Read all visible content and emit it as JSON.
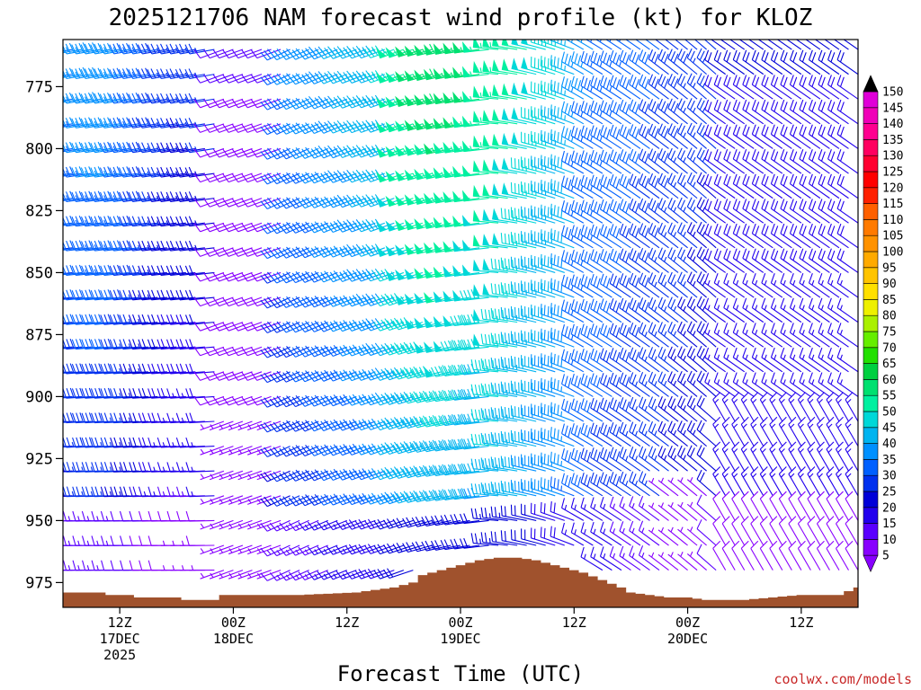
{
  "chart_data": {
    "type": "wind-profile",
    "title": "2025121706 NAM forecast wind profile (kt) for KLOZ",
    "xlabel": "Forecast Time (UTC)",
    "credit": "coolwx.com/models",
    "y_axis": {
      "unit": "hPa",
      "ticks": [
        775,
        800,
        825,
        850,
        875,
        900,
        925,
        950,
        975
      ],
      "range": [
        756,
        985
      ]
    },
    "x_axis": {
      "unit": "forecast hour",
      "range": [
        0,
        84
      ],
      "ticks": [
        {
          "hour": 6,
          "lines": [
            "12Z",
            "17DEC",
            "2025"
          ]
        },
        {
          "hour": 18,
          "lines": [
            "00Z",
            "18DEC"
          ]
        },
        {
          "hour": 30,
          "lines": [
            "12Z"
          ]
        },
        {
          "hour": 42,
          "lines": [
            "00Z",
            "19DEC"
          ]
        },
        {
          "hour": 54,
          "lines": [
            "12Z"
          ]
        },
        {
          "hour": 66,
          "lines": [
            "00Z",
            "20DEC"
          ]
        },
        {
          "hour": 78,
          "lines": [
            "12Z"
          ]
        }
      ]
    },
    "colorbar": {
      "levels": [
        5,
        10,
        15,
        20,
        25,
        30,
        35,
        40,
        45,
        50,
        55,
        60,
        65,
        70,
        75,
        80,
        85,
        90,
        95,
        100,
        105,
        110,
        115,
        120,
        125,
        130,
        135,
        140,
        145,
        150
      ],
      "colors": [
        "#8800ff",
        "#5a00ff",
        "#2200ee",
        "#0000d8",
        "#0030ee",
        "#0060ff",
        "#0090ff",
        "#00b4f0",
        "#00d8d8",
        "#00f0a0",
        "#00e070",
        "#00d040",
        "#22e000",
        "#66ee00",
        "#aaf000",
        "#eef000",
        "#ffe000",
        "#ffc400",
        "#ffaa00",
        "#ff9200",
        "#ff7a00",
        "#ff6000",
        "#ff2000",
        "#ff0000",
        "#ff0030",
        "#ff0060",
        "#ff0090",
        "#f000b8",
        "#e000d8",
        "#c800ff"
      ],
      "below_color": "#8800ff",
      "above_color": "#000000"
    },
    "terrain": {
      "color": "#a0522d",
      "surface_pressure_profile": [
        [
          0,
          979
        ],
        [
          4,
          979
        ],
        [
          5,
          980
        ],
        [
          7,
          980
        ],
        [
          8,
          981
        ],
        [
          12,
          981
        ],
        [
          13,
          982
        ],
        [
          16,
          982
        ],
        [
          17,
          980
        ],
        [
          25,
          980
        ],
        [
          31,
          979
        ],
        [
          35,
          977
        ],
        [
          37,
          975
        ],
        [
          38,
          972
        ],
        [
          40,
          970
        ],
        [
          42,
          968
        ],
        [
          44,
          966
        ],
        [
          46,
          965
        ],
        [
          48,
          965
        ],
        [
          50,
          966
        ],
        [
          52,
          968
        ],
        [
          55,
          971
        ],
        [
          57,
          974
        ],
        [
          59,
          977
        ],
        [
          60,
          979
        ],
        [
          62,
          980
        ],
        [
          64,
          981
        ],
        [
          66,
          981
        ],
        [
          68,
          982
        ],
        [
          72,
          982
        ],
        [
          75,
          981
        ],
        [
          78,
          980
        ],
        [
          82,
          980
        ],
        [
          84,
          977
        ]
      ]
    },
    "wind_description": "Wind barbs every forecast hour and every 10 hPa; westerly 20-40 kt flow at start, strongest 55-65 kt around 00Z 19DEC near 800-875 hPa, veering to northwesterly and weakening to 10-25 kt by 20DEC; calm gaps near the surface around 00Z 18DEC and 06Z 20DEC."
  }
}
